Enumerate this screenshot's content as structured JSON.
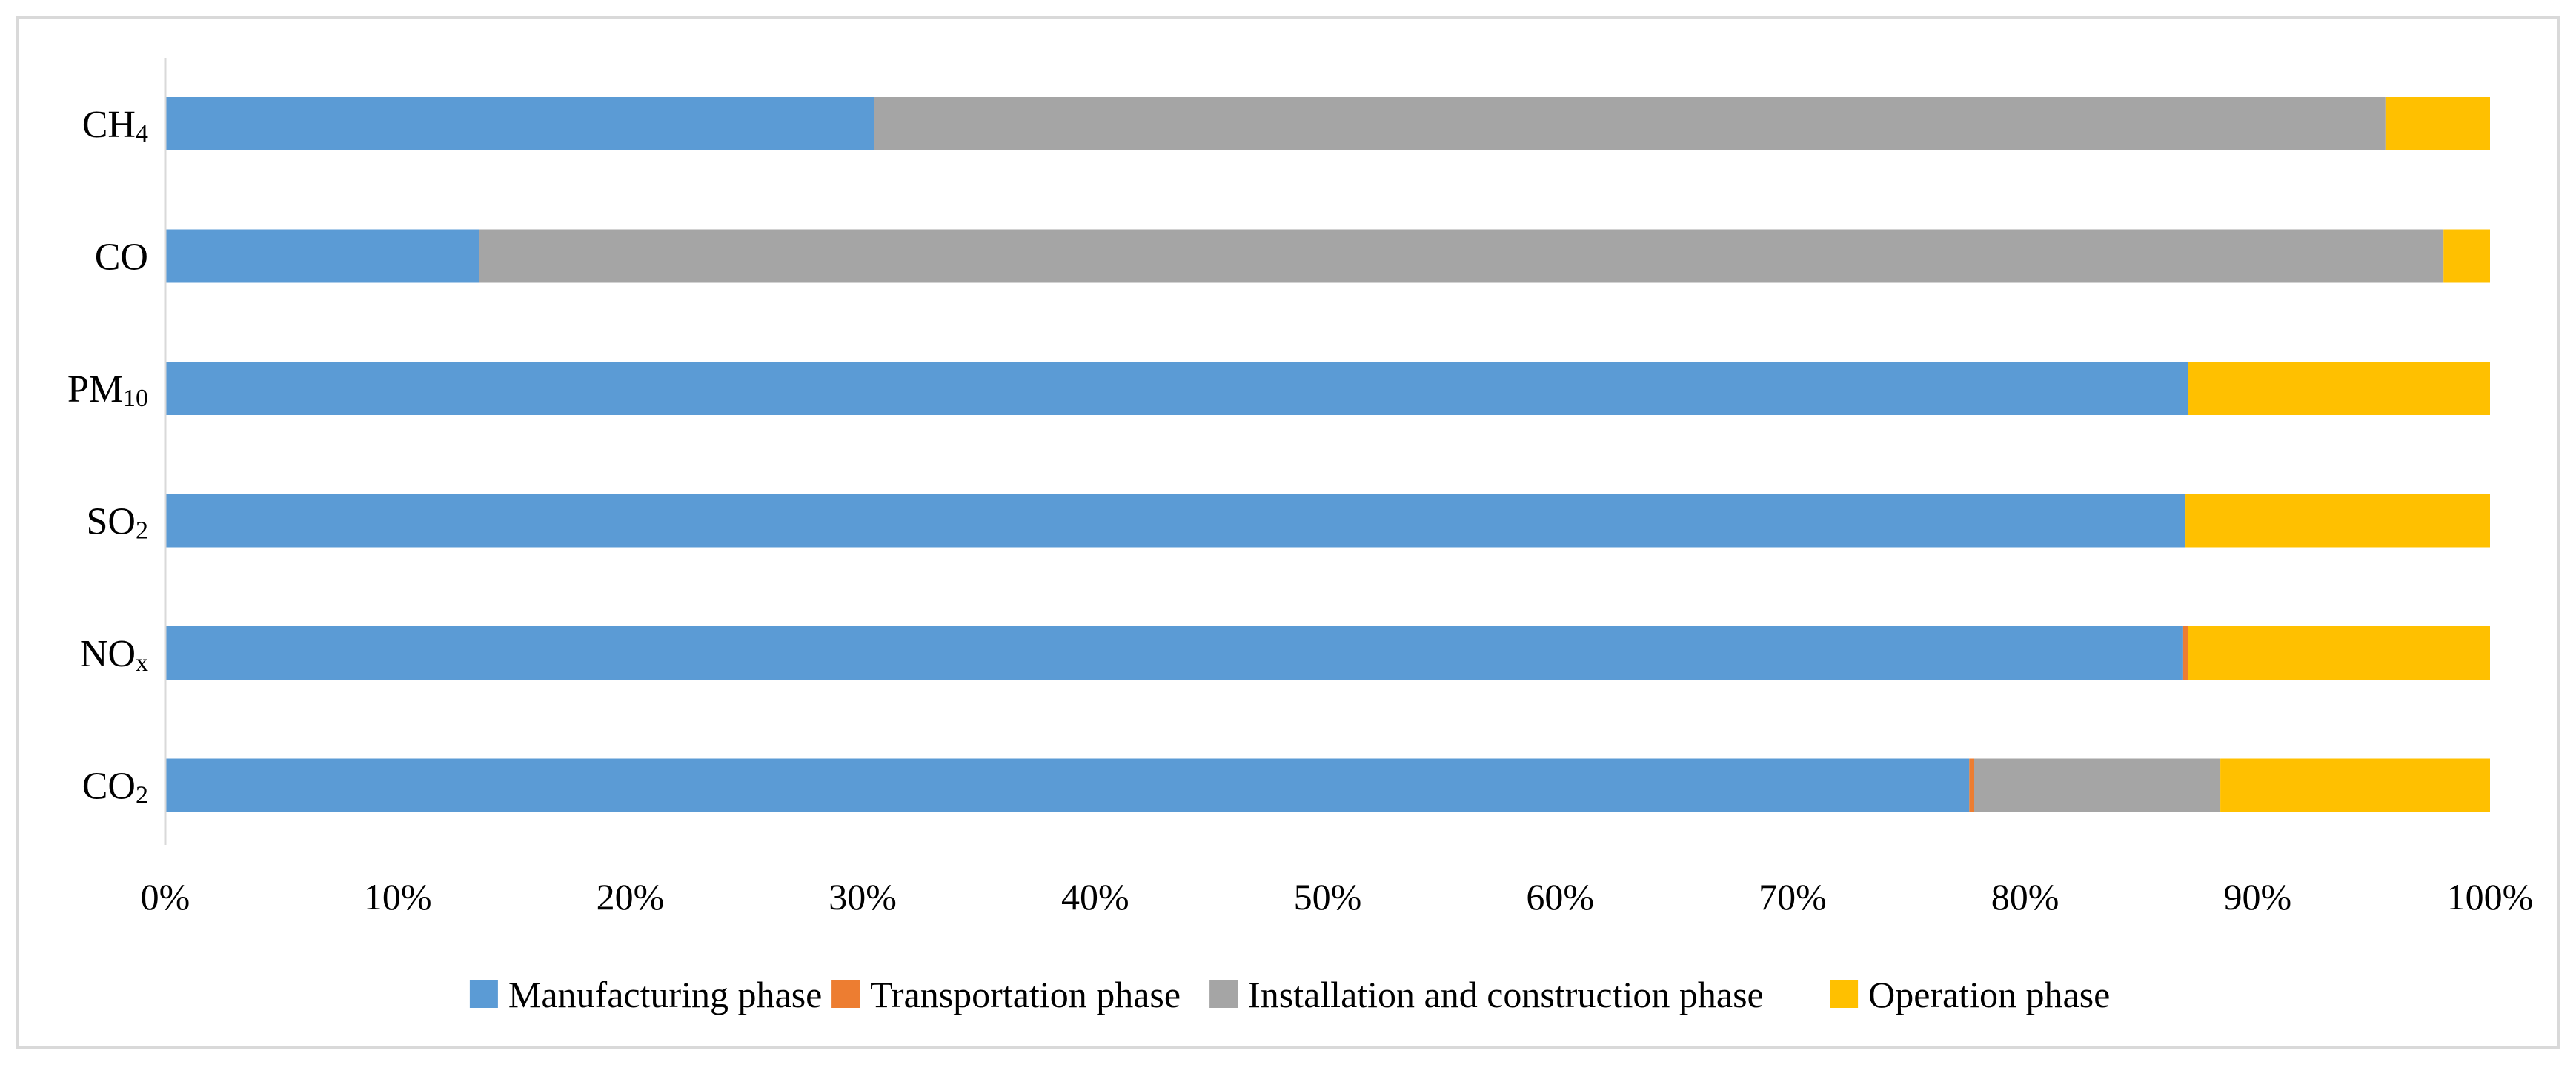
{
  "chart_data": {
    "type": "bar",
    "orientation": "horizontal",
    "stacked": "percent",
    "title": "",
    "xlabel": "",
    "ylabel": "",
    "xlim": [
      0,
      100
    ],
    "x_ticks": [
      "0%",
      "10%",
      "20%",
      "30%",
      "40%",
      "50%",
      "60%",
      "70%",
      "80%",
      "90%",
      "100%"
    ],
    "grid": false,
    "legend_position": "bottom",
    "categories": [
      {
        "base": "CH",
        "sub": "4"
      },
      {
        "base": "CO",
        "sub": ""
      },
      {
        "base": "PM",
        "sub": "10"
      },
      {
        "base": "SO",
        "sub": "2"
      },
      {
        "base": "NO",
        "sub": "x"
      },
      {
        "base": "CO",
        "sub": "2"
      }
    ],
    "series": [
      {
        "name": "Manufacturing phase",
        "color": "#5b9bd5",
        "values": [
          30.5,
          13.5,
          87.0,
          86.9,
          86.8,
          77.6
        ]
      },
      {
        "name": "Transportation phase",
        "color": "#ed7d31",
        "values": [
          0.0,
          0.0,
          0.0,
          0.0,
          0.2,
          0.2
        ]
      },
      {
        "name": "Installation and construction phase",
        "color": "#a5a5a5",
        "values": [
          65.0,
          84.5,
          0.0,
          0.0,
          0.0,
          10.6
        ]
      },
      {
        "name": "Operation phase",
        "color": "#ffc000",
        "values": [
          4.5,
          2.0,
          13.0,
          13.1,
          13.0,
          11.6
        ]
      }
    ]
  }
}
